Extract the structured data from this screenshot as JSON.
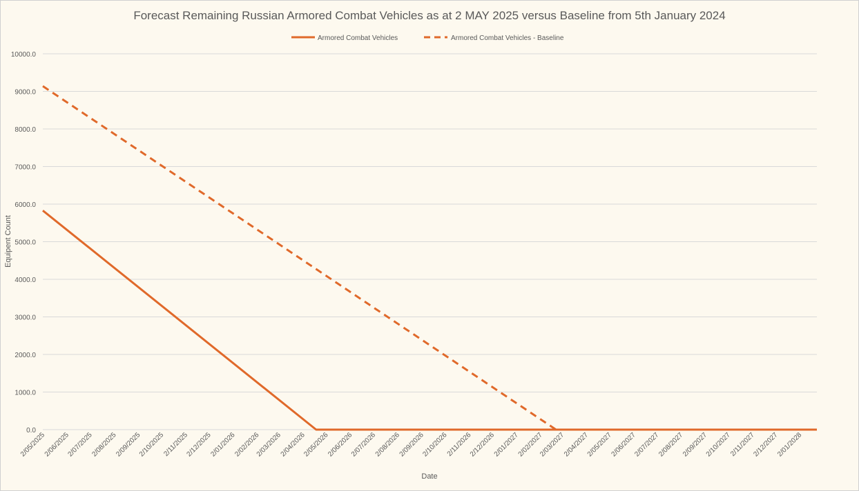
{
  "chart_data": {
    "type": "line",
    "title": "Forecast Remaining Russian Armored Combat Vehicles as at 2 MAY 2025 versus Baseline from 5th January 2024",
    "xlabel": "Date",
    "ylabel": "Equipent Count",
    "ylim": [
      0,
      10000
    ],
    "yticks": [
      "0.0",
      "1000.0",
      "2000.0",
      "3000.0",
      "4000.0",
      "5000.0",
      "6000.0",
      "7000.0",
      "8000.0",
      "9000.0",
      "10000.0"
    ],
    "xlim": [
      "2025-05-02",
      "2028-01-24"
    ],
    "xticks": [
      "2/05/2025",
      "2/06/2025",
      "2/07/2025",
      "2/08/2025",
      "2/09/2025",
      "2/10/2025",
      "2/11/2025",
      "2/12/2025",
      "2/01/2026",
      "2/02/2026",
      "2/03/2026",
      "2/04/2026",
      "2/05/2026",
      "2/06/2026",
      "2/07/2026",
      "2/08/2026",
      "2/09/2026",
      "2/10/2026",
      "2/11/2026",
      "2/12/2026",
      "2/01/2027",
      "2/02/2027",
      "2/03/2027",
      "2/04/2027",
      "2/05/2027",
      "2/06/2027",
      "2/07/2027",
      "2/08/2027",
      "2/09/2027",
      "2/10/2027",
      "2/11/2027",
      "2/12/2027",
      "2/01/2028"
    ],
    "grid": true,
    "legend_position": "top",
    "series": [
      {
        "name": "Armored Combat Vehicles",
        "style": "solid",
        "color": "#e0692a",
        "points": [
          [
            "2025-05-02",
            5830
          ],
          [
            "2026-04-19",
            0
          ],
          [
            "2028-01-24",
            0
          ]
        ]
      },
      {
        "name": "Armored Combat Vehicles - Baseline",
        "style": "dashed",
        "color": "#e0692a",
        "points": [
          [
            "2025-05-02",
            9140
          ],
          [
            "2027-02-22",
            0
          ]
        ]
      }
    ]
  }
}
